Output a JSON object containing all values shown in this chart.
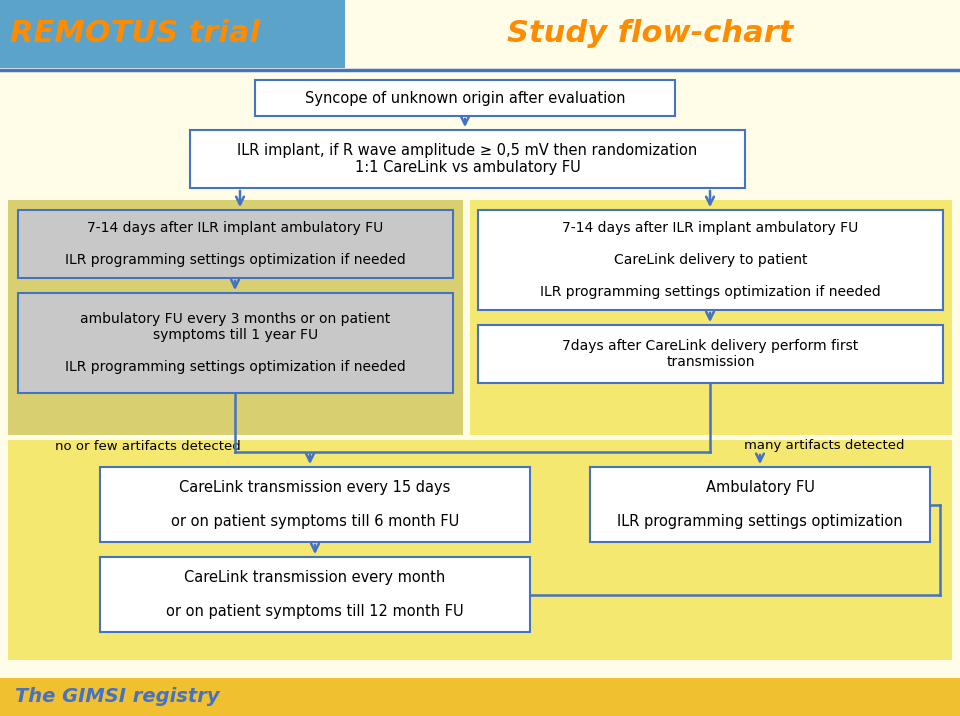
{
  "bg_color": "#FFFDE7",
  "header_box_color": "#5BA3C9",
  "header_text_color": "#FF8C00",
  "title_left": "REMOTUS trial",
  "title_right": "Study flow-chart",
  "divider_color": "#4472C4",
  "box_bg_gray": "#C8C8C8",
  "box_bg_white": "#FFFFFF",
  "box_border": "#4472C4",
  "arrow_color": "#4472C4",
  "area_bg_left": "#D8D070",
  "area_bg_right": "#F5E870",
  "area_bg_bottom": "#F5E870",
  "gimsi_bg": "#F0C030",
  "gimsi_text": "The GIMSI registry",
  "gimsi_text_color": "#4472C4",
  "top_box": "Syncope of unknown origin after evaluation",
  "second_box": "ILR implant, if R wave amplitude ≥ 0,5 mV then randomization\n1:1 CareLink vs ambulatory FU",
  "left_box1": "7-14 days after ILR implant ambulatory FU\n\nILR programming settings optimization if needed",
  "left_box2": "ambulatory FU every 3 months or on patient\nsymptoms till 1 year FU\n\nILR programming settings optimization if needed",
  "right_box1": "7-14 days after ILR implant ambulatory FU\n\nCareLink delivery to patient\n\nILR programming settings optimization if needed",
  "right_box2": "7days after CareLink delivery perform first\ntransmission",
  "label_left": "no or few artifacts detected",
  "label_right": "many artifacts detected",
  "bottom_left_box1": "CareLink transmission every 15 days\n\nor on patient symptoms till 6 month FU",
  "bottom_left_box2": "CareLink transmission every month\n\nor on patient symptoms till 12 month FU",
  "bottom_right_box": "Ambulatory FU\n\nILR programming settings optimization"
}
